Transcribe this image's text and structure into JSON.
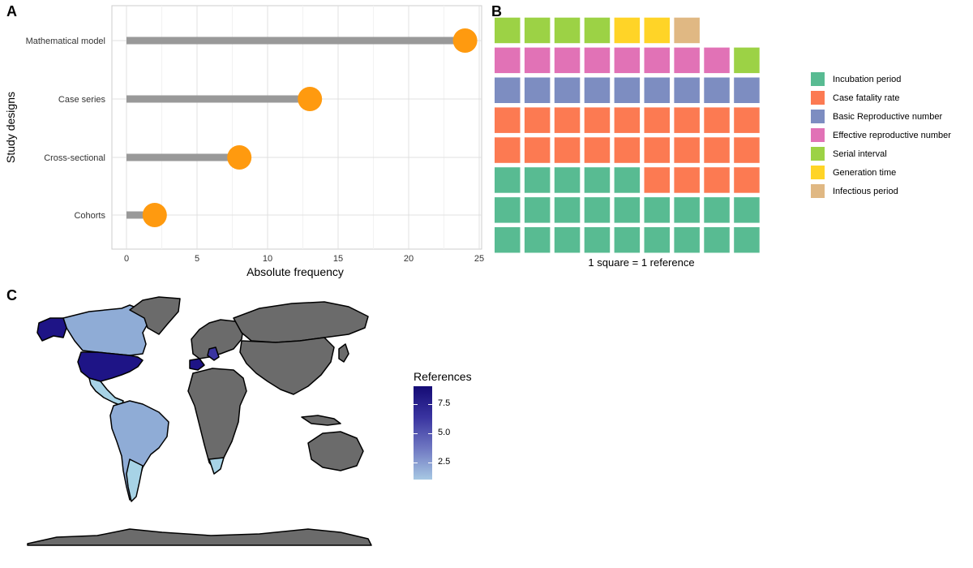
{
  "panels": {
    "a": "A",
    "b": "B",
    "c": "C"
  },
  "chart_data": [
    {
      "type": "lollipop",
      "panel": "A",
      "categories": [
        "Mathematical model",
        "Case series",
        "Cross-sectional",
        "Cohorts"
      ],
      "values": [
        24,
        13,
        8,
        2
      ],
      "xlabel": "Absolute frequency",
      "ylabel": "Study designs",
      "xlim": [
        0,
        25
      ],
      "xticks": [
        0,
        5,
        10,
        15,
        20,
        25
      ],
      "grid": true,
      "colors": {
        "stem": "#999999",
        "point": "#ff9a0f"
      }
    },
    {
      "type": "waffle",
      "panel": "B",
      "caption": "1 square = 1 reference",
      "columns": 9,
      "series": [
        {
          "name": "Incubation period",
          "value": 23,
          "color": "#58bb92"
        },
        {
          "name": "Case fatality rate",
          "value": 22,
          "color": "#fc7a52"
        },
        {
          "name": "Basic Reproductive number",
          "value": 9,
          "color": "#7d8dc1"
        },
        {
          "name": "Effective reproductive number",
          "value": 8,
          "color": "#e172b6"
        },
        {
          "name": "Serial interval",
          "value": 5,
          "color": "#9cd245"
        },
        {
          "name": "Generation time",
          "value": 2,
          "color": "#ffd427"
        },
        {
          "name": "Infectious period",
          "value": 1,
          "color": "#e0b883"
        }
      ],
      "legend_position": "right"
    },
    {
      "type": "choropleth",
      "panel": "C",
      "legend_title": "References",
      "legend_ticks": [
        "7.5",
        "5.0",
        "2.5"
      ],
      "colors": {
        "no_data": "#6b6b6b",
        "low": "#a7d3e6",
        "high": "#140b75"
      }
    }
  ]
}
